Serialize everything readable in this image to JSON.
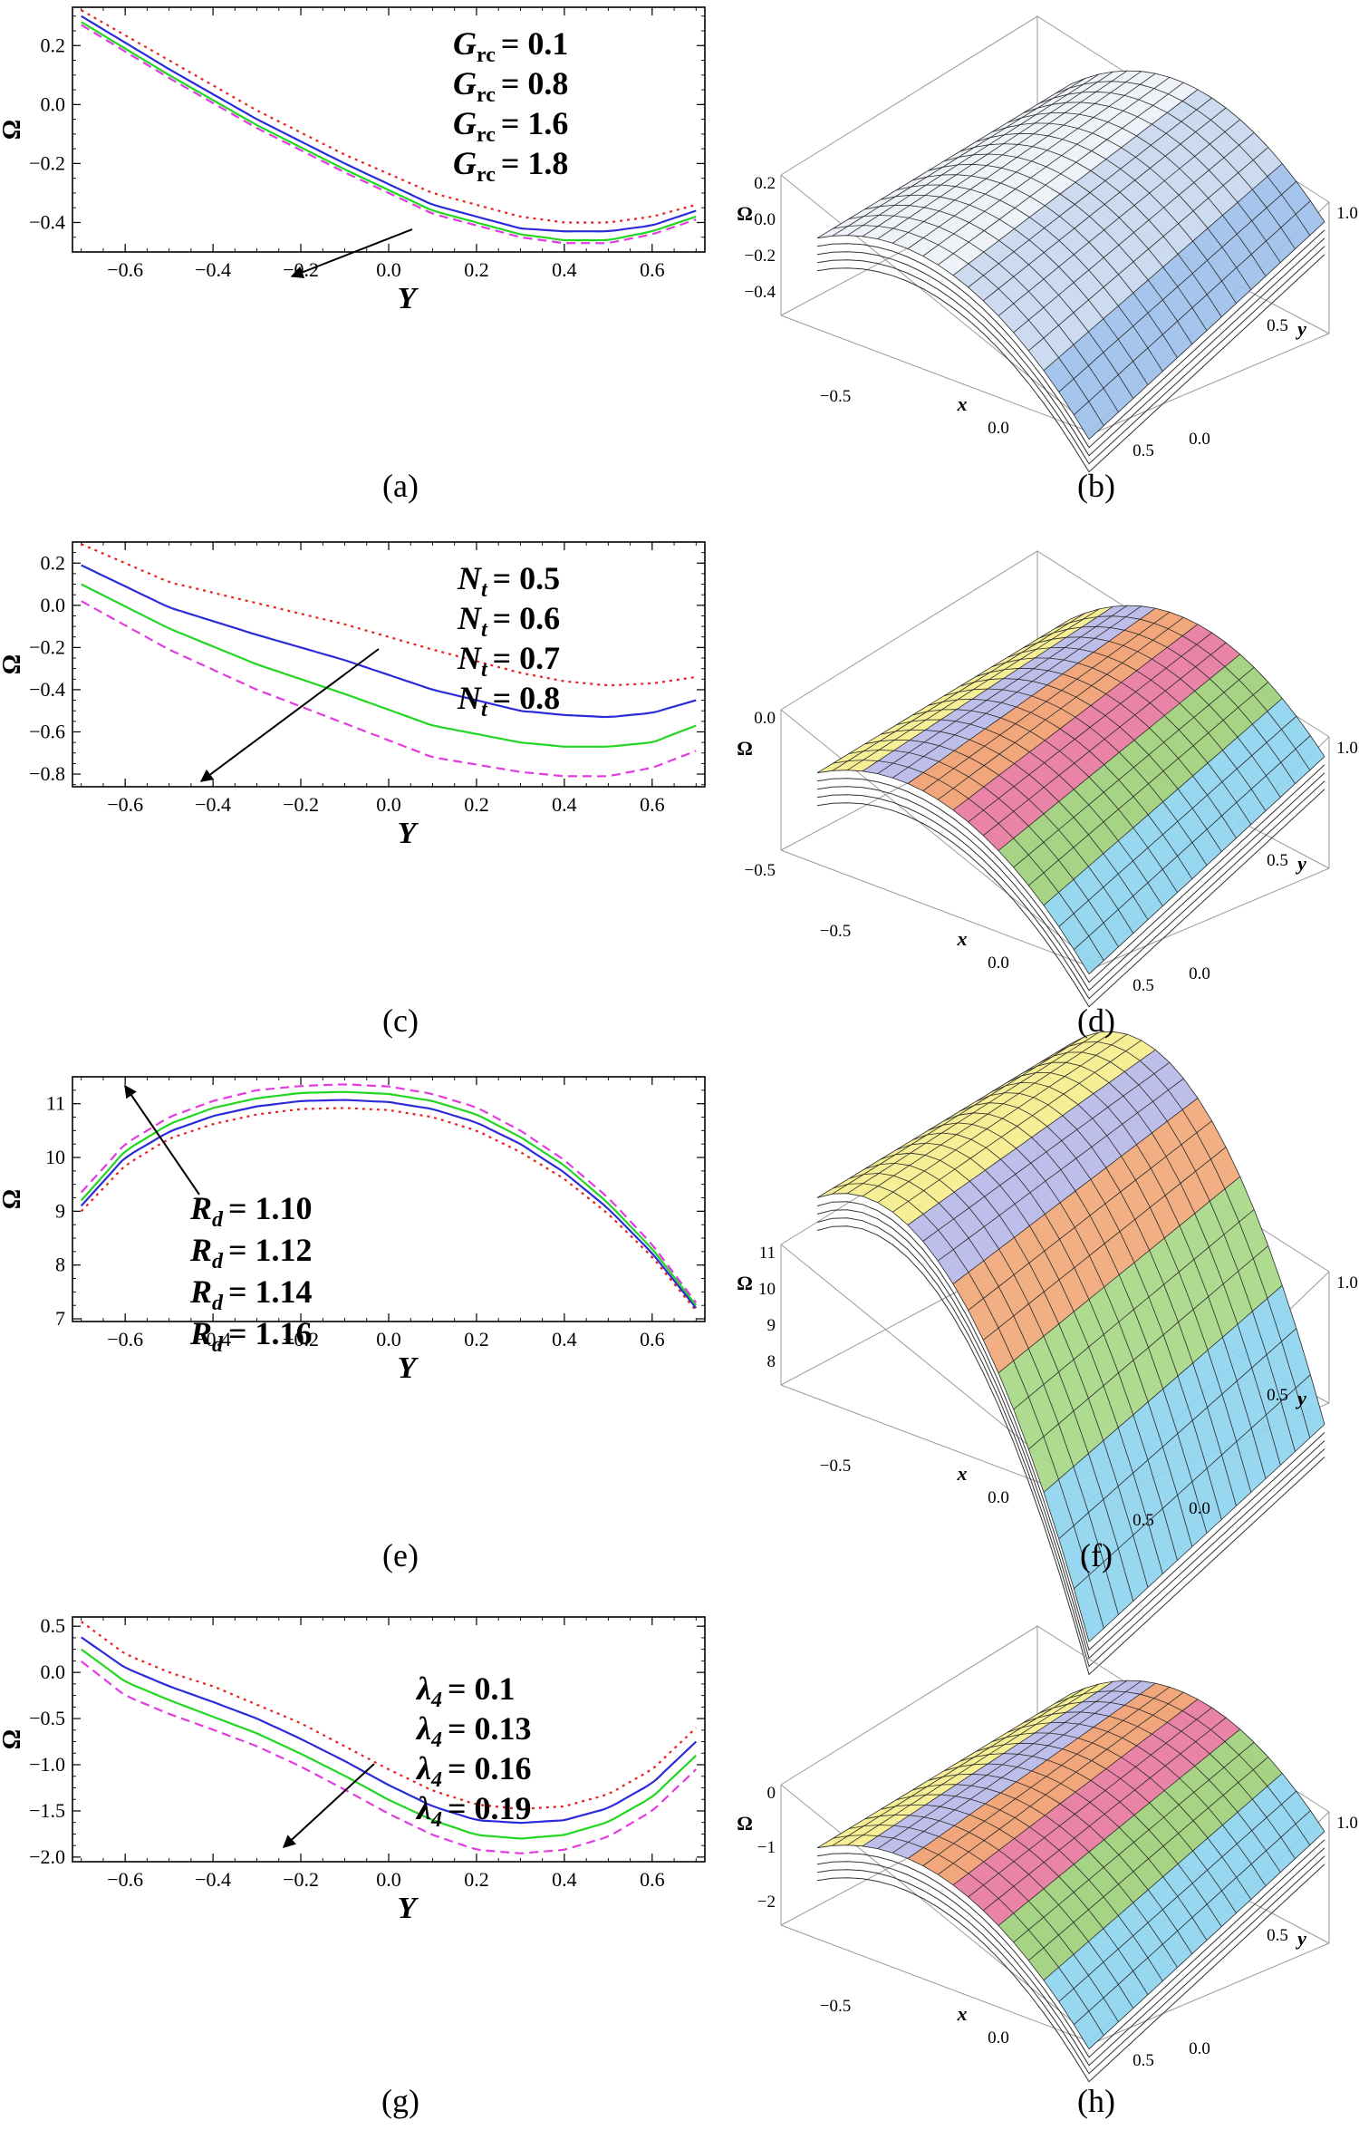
{
  "figure": {
    "captions": [
      "(a)",
      "(b)",
      "(c)",
      "(d)",
      "(e)",
      "(f)",
      "(g)",
      "(h)"
    ]
  },
  "chart_data": [
    {
      "id": "a",
      "type": "line",
      "xlabel": "Y",
      "ylabel": "Ω",
      "xlim": [
        -0.72,
        0.72
      ],
      "ylim": [
        -0.5,
        0.33
      ],
      "xticks": [
        -0.6,
        -0.4,
        -0.2,
        0.0,
        0.2,
        0.4,
        0.6
      ],
      "xtick_labels": [
        "−0.6",
        "−0.4",
        "−0.2",
        "0.0",
        "0.2",
        "0.4",
        "0.6"
      ],
      "yticks": [
        0.2,
        0.0,
        -0.2,
        -0.4
      ],
      "ytick_labels": [
        "0.2",
        "0.0",
        "−0.2",
        "−0.4"
      ],
      "legend": [
        {
          "sym": "G",
          "sub": "rc",
          "val": "= 0.1"
        },
        {
          "sym": "G",
          "sub": "rc",
          "val": "= 0.8"
        },
        {
          "sym": "G",
          "sub": "rc",
          "val": "= 1.6"
        },
        {
          "sym": "G",
          "sub": "rc",
          "val": "= 1.8"
        }
      ],
      "x": [
        -0.7,
        -0.5,
        -0.3,
        -0.1,
        0.1,
        0.3,
        0.4,
        0.5,
        0.6,
        0.7
      ],
      "series": [
        {
          "name": "Grc = 0.1",
          "color": "#e8231e",
          "dash": "dot",
          "values": [
            0.32,
            0.15,
            -0.02,
            -0.17,
            -0.3,
            -0.38,
            -0.4,
            -0.4,
            -0.38,
            -0.34
          ]
        },
        {
          "name": "Grc = 0.8",
          "color": "#2b2bd9",
          "dash": "solid",
          "values": [
            0.3,
            0.12,
            -0.05,
            -0.2,
            -0.34,
            -0.42,
            -0.43,
            -0.43,
            -0.41,
            -0.36
          ]
        },
        {
          "name": "Grc = 1.6",
          "color": "#22d622",
          "dash": "solid",
          "values": [
            0.28,
            0.1,
            -0.07,
            -0.22,
            -0.36,
            -0.44,
            -0.46,
            -0.46,
            -0.43,
            -0.38
          ]
        },
        {
          "name": "Grc = 1.8",
          "color": "#e23ce0",
          "dash": "dash",
          "values": [
            0.27,
            0.09,
            -0.08,
            -0.23,
            -0.37,
            -0.45,
            -0.47,
            -0.47,
            -0.44,
            -0.39
          ]
        }
      ]
    },
    {
      "id": "c",
      "type": "line",
      "xlabel": "Y",
      "ylabel": "Ω",
      "xlim": [
        -0.72,
        0.72
      ],
      "ylim": [
        -0.86,
        0.3
      ],
      "xticks": [
        -0.6,
        -0.4,
        -0.2,
        0.0,
        0.2,
        0.4,
        0.6
      ],
      "xtick_labels": [
        "−0.6",
        "−0.4",
        "−0.2",
        "0.0",
        "0.2",
        "0.4",
        "0.6"
      ],
      "yticks": [
        0.2,
        0.0,
        -0.2,
        -0.4,
        -0.6,
        -0.8
      ],
      "ytick_labels": [
        "0.2",
        "0.0",
        "−0.2",
        "−0.4",
        "−0.6",
        "−0.8"
      ],
      "legend": [
        {
          "sym": "N",
          "sub": "t",
          "val": "= 0.5"
        },
        {
          "sym": "N",
          "sub": "t",
          "val": "= 0.6"
        },
        {
          "sym": "N",
          "sub": "t",
          "val": "= 0.7"
        },
        {
          "sym": "N",
          "sub": "t",
          "val": "= 0.8"
        }
      ],
      "x": [
        -0.7,
        -0.5,
        -0.3,
        -0.1,
        0.1,
        0.3,
        0.4,
        0.5,
        0.6,
        0.7
      ],
      "series": [
        {
          "name": "Nt = 0.5",
          "color": "#e8231e",
          "dash": "dot",
          "values": [
            0.29,
            0.11,
            0.01,
            -0.09,
            -0.21,
            -0.32,
            -0.36,
            -0.38,
            -0.37,
            -0.34
          ]
        },
        {
          "name": "Nt = 0.6",
          "color": "#2b2bd9",
          "dash": "solid",
          "values": [
            0.19,
            -0.01,
            -0.14,
            -0.26,
            -0.4,
            -0.5,
            -0.52,
            -0.53,
            -0.51,
            -0.45
          ]
        },
        {
          "name": "Nt = 0.7",
          "color": "#22d622",
          "dash": "solid",
          "values": [
            0.1,
            -0.11,
            -0.28,
            -0.42,
            -0.57,
            -0.65,
            -0.67,
            -0.67,
            -0.65,
            -0.57
          ]
        },
        {
          "name": "Nt = 0.8",
          "color": "#e23ce0",
          "dash": "dash",
          "values": [
            0.02,
            -0.21,
            -0.4,
            -0.56,
            -0.72,
            -0.79,
            -0.81,
            -0.81,
            -0.77,
            -0.69
          ]
        }
      ]
    },
    {
      "id": "e",
      "type": "line",
      "xlabel": "Y",
      "ylabel": "Ω",
      "xlim": [
        -0.72,
        0.72
      ],
      "ylim": [
        6.95,
        11.5
      ],
      "xticks": [
        -0.6,
        -0.4,
        -0.2,
        0.0,
        0.2,
        0.4,
        0.6
      ],
      "xtick_labels": [
        "−0.6",
        "−0.4",
        "−0.2",
        "0.0",
        "0.2",
        "0.4",
        "0.6"
      ],
      "yticks": [
        11,
        10,
        9,
        8,
        7
      ],
      "ytick_labels": [
        "11",
        "10",
        "9",
        "8",
        "7"
      ],
      "legend": [
        {
          "sym": "R",
          "sub": "d",
          "val": "= 1.10"
        },
        {
          "sym": "R",
          "sub": "d",
          "val": "= 1.12"
        },
        {
          "sym": "R",
          "sub": "d",
          "val": "= 1.14"
        },
        {
          "sym": "R",
          "sub": "d",
          "val": "= 1.16"
        }
      ],
      "x": [
        -0.7,
        -0.6,
        -0.5,
        -0.4,
        -0.3,
        -0.2,
        -0.1,
        0.0,
        0.1,
        0.2,
        0.3,
        0.4,
        0.5,
        0.6,
        0.7
      ],
      "series": [
        {
          "name": "Rd = 1.10",
          "color": "#e8231e",
          "dash": "dot",
          "values": [
            9.0,
            9.85,
            10.35,
            10.62,
            10.8,
            10.9,
            10.92,
            10.88,
            10.75,
            10.5,
            10.1,
            9.6,
            8.95,
            8.15,
            7.15
          ]
        },
        {
          "name": "Rd = 1.12",
          "color": "#2b2bd9",
          "dash": "solid",
          "values": [
            9.1,
            10.0,
            10.48,
            10.77,
            10.95,
            11.05,
            11.07,
            11.03,
            10.9,
            10.65,
            10.25,
            9.72,
            9.05,
            8.22,
            7.2
          ]
        },
        {
          "name": "Rd = 1.14",
          "color": "#22d622",
          "dash": "solid",
          "values": [
            9.2,
            10.12,
            10.62,
            10.92,
            11.1,
            11.2,
            11.22,
            11.18,
            11.05,
            10.8,
            10.38,
            9.85,
            9.15,
            8.3,
            7.25
          ]
        },
        {
          "name": "Rd = 1.16",
          "color": "#e23ce0",
          "dash": "dash",
          "values": [
            9.35,
            10.25,
            10.75,
            11.05,
            11.25,
            11.33,
            11.36,
            11.32,
            11.18,
            10.93,
            10.5,
            9.95,
            9.25,
            8.38,
            7.3
          ]
        }
      ]
    },
    {
      "id": "g",
      "type": "line",
      "xlabel": "Y",
      "ylabel": "Ω",
      "xlim": [
        -0.72,
        0.72
      ],
      "ylim": [
        -2.05,
        0.6
      ],
      "xticks": [
        -0.6,
        -0.4,
        -0.2,
        0.0,
        0.2,
        0.4,
        0.6
      ],
      "xtick_labels": [
        "−0.6",
        "−0.4",
        "−0.2",
        "0.0",
        "0.2",
        "0.4",
        "0.6"
      ],
      "yticks": [
        0.5,
        0.0,
        -0.5,
        -1.0,
        -1.5,
        -2.0
      ],
      "ytick_labels": [
        "0.5",
        "0.0",
        "−0.5",
        "−1.0",
        "−1.5",
        "−2.0"
      ],
      "legend": [
        {
          "sym": "λ",
          "sub": "4",
          "val": "= 0.1"
        },
        {
          "sym": "λ",
          "sub": "4",
          "val": "= 0.13"
        },
        {
          "sym": "λ",
          "sub": "4",
          "val": "= 0.16"
        },
        {
          "sym": "λ",
          "sub": "4",
          "val": "= 0.19"
        }
      ],
      "x": [
        -0.7,
        -0.6,
        -0.5,
        -0.4,
        -0.3,
        -0.2,
        -0.1,
        0.0,
        0.1,
        0.2,
        0.3,
        0.4,
        0.5,
        0.6,
        0.7
      ],
      "series": [
        {
          "name": "λ4 = 0.1",
          "color": "#e8231e",
          "dash": "dot",
          "values": [
            0.55,
            0.2,
            0.0,
            -0.15,
            -0.35,
            -0.55,
            -0.8,
            -1.05,
            -1.28,
            -1.43,
            -1.48,
            -1.45,
            -1.32,
            -1.05,
            -0.6
          ]
        },
        {
          "name": "λ4 = 0.13",
          "color": "#2b2bd9",
          "dash": "solid",
          "values": [
            0.38,
            0.05,
            -0.15,
            -0.32,
            -0.5,
            -0.72,
            -0.96,
            -1.22,
            -1.45,
            -1.6,
            -1.63,
            -1.6,
            -1.47,
            -1.2,
            -0.75
          ]
        },
        {
          "name": "λ4 = 0.16",
          "color": "#22d622",
          "dash": "solid",
          "values": [
            0.25,
            -0.1,
            -0.3,
            -0.48,
            -0.66,
            -0.88,
            -1.12,
            -1.38,
            -1.6,
            -1.76,
            -1.8,
            -1.76,
            -1.62,
            -1.35,
            -0.9
          ]
        },
        {
          "name": "λ4 = 0.19",
          "color": "#e23ce0",
          "dash": "dash",
          "values": [
            0.12,
            -0.25,
            -0.45,
            -0.62,
            -0.8,
            -1.02,
            -1.27,
            -1.53,
            -1.76,
            -1.92,
            -1.96,
            -1.92,
            -1.78,
            -1.5,
            -1.05
          ]
        }
      ]
    },
    {
      "id": "b",
      "type": "surface3d",
      "zlabel": "Ω",
      "xlabel": "x",
      "ylabel": "y",
      "zticks": [
        "0.2",
        "0.0",
        "−0.2",
        "−0.4"
      ],
      "xticks": [
        "−0.5",
        "0.0",
        "0.5"
      ],
      "yticks": [
        "0.0",
        "0.5",
        "1.0"
      ]
    },
    {
      "id": "d",
      "type": "surface3d",
      "zlabel": "Ω",
      "xlabel": "x",
      "ylabel": "y",
      "zticks": [
        "0.0",
        "−0.5"
      ],
      "xticks": [
        "−0.5",
        "0.0",
        "0.5"
      ],
      "yticks": [
        "0.0",
        "0.5",
        "1.0"
      ]
    },
    {
      "id": "f",
      "type": "surface3d",
      "zlabel": "Ω",
      "xlabel": "x",
      "ylabel": "y",
      "zticks": [
        "11",
        "10",
        "9",
        "8"
      ],
      "xticks": [
        "−0.5",
        "0.0",
        "0.5"
      ],
      "yticks": [
        "0.0",
        "0.5",
        "1.0"
      ]
    },
    {
      "id": "h",
      "type": "surface3d",
      "zlabel": "Ω",
      "xlabel": "x",
      "ylabel": "y",
      "zticks": [
        "0",
        "−1",
        "−2"
      ],
      "xticks": [
        "−0.5",
        "0.0",
        "0.5"
      ],
      "yticks": [
        "0.0",
        "0.5",
        "1.0"
      ]
    }
  ]
}
